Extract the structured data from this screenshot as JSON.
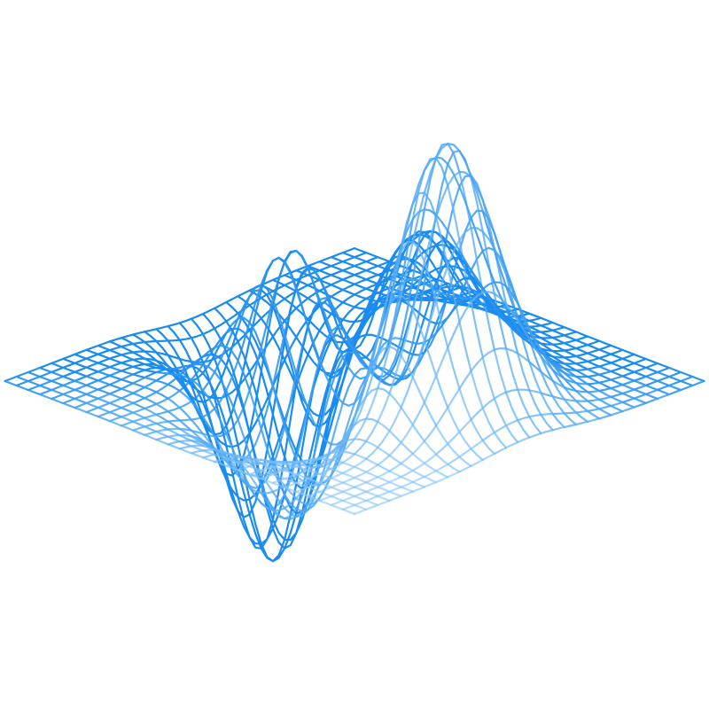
{
  "surface": {
    "line_color_back": "#1a8cf0",
    "line_color_front": "#8cc8fb",
    "background": "#ffffff"
  }
}
